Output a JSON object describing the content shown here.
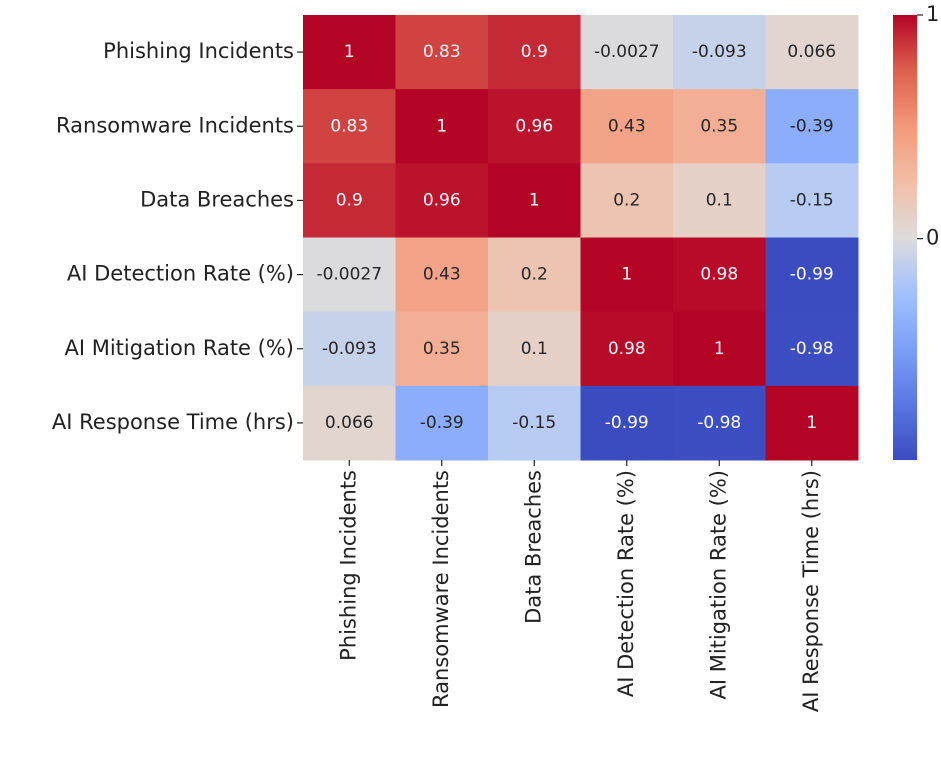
{
  "chart_data": {
    "type": "heatmap",
    "categories": [
      "Phishing Incidents",
      "Ransomware Incidents",
      "Data Breaches",
      "AI Detection Rate (%)",
      "AI Mitigation Rate (%)",
      "AI Response Time (hrs)"
    ],
    "values": [
      [
        1,
        0.83,
        0.9,
        -0.0027,
        -0.093,
        0.066
      ],
      [
        0.83,
        1,
        0.96,
        0.43,
        0.35,
        -0.39
      ],
      [
        0.9,
        0.96,
        1,
        0.2,
        0.1,
        -0.15
      ],
      [
        -0.0027,
        0.43,
        0.2,
        1,
        0.98,
        -0.99
      ],
      [
        -0.093,
        0.35,
        0.1,
        0.98,
        1,
        -0.98
      ],
      [
        0.066,
        -0.39,
        -0.15,
        -0.99,
        -0.98,
        1
      ]
    ],
    "colormap": "coolwarm",
    "clim": [
      -0.99,
      1
    ],
    "cticks": [
      0,
      1
    ]
  }
}
